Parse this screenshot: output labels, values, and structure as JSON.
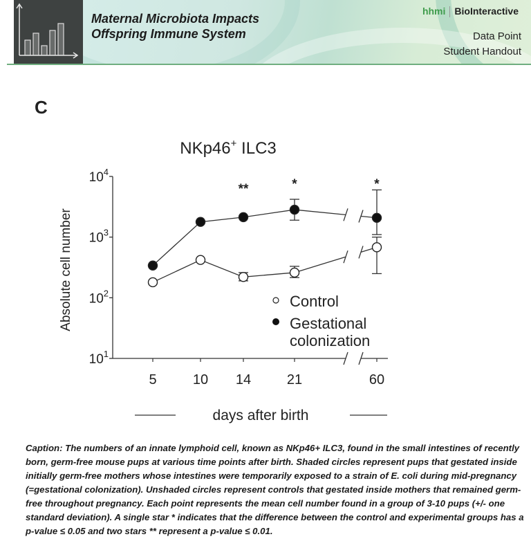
{
  "header": {
    "title_line1": "Maternal Microbiota Impacts",
    "title_line2": "Offspring Immune System",
    "brand_hhmi": "hhmi",
    "brand_name": "BioInteractive",
    "subtitle_line1": "Data Point",
    "subtitle_line2": "Student Handout",
    "accent_color": "#3f9c4c"
  },
  "panel_letter": "C",
  "chart_data": {
    "type": "line",
    "title": "NKp46",
    "title_superscript": "+",
    "title_suffix": " ILC3",
    "xlabel": "days after birth",
    "ylabel": "Absolute cell number",
    "yscale": "log",
    "ylim": [
      10,
      10000
    ],
    "y_ticks": [
      {
        "value": 10,
        "base": "10",
        "exp": "1"
      },
      {
        "value": 100,
        "base": "10",
        "exp": "2"
      },
      {
        "value": 1000,
        "base": "10",
        "exp": "3"
      },
      {
        "value": 10000,
        "base": "10",
        "exp": "4"
      }
    ],
    "x": [
      5,
      10,
      14,
      21,
      60
    ],
    "x_tick_labels": [
      "5",
      "10",
      "14",
      "21",
      "60"
    ],
    "x_axis_break": "between 21 and 60",
    "series": [
      {
        "name": "Gestational colonization",
        "marker": "filled-circle",
        "values": [
          340,
          1780,
          2130,
          2830,
          2080
        ],
        "error_low": [
          null,
          null,
          null,
          1900,
          1100
        ],
        "error_high": [
          null,
          null,
          null,
          4200,
          6000
        ]
      },
      {
        "name": "Control",
        "marker": "open-circle",
        "values": [
          180,
          420,
          220,
          260,
          680
        ],
        "error_low": [
          null,
          null,
          190,
          215,
          250
        ],
        "error_high": [
          null,
          null,
          260,
          330,
          1000
        ]
      }
    ],
    "significance": [
      {
        "x": 14,
        "label": "**"
      },
      {
        "x": 21,
        "label": "*"
      },
      {
        "x": 60,
        "label": "*"
      }
    ],
    "legend": {
      "position": "bottom-right",
      "entries": [
        {
          "label": "Control",
          "marker": "open-circle"
        },
        {
          "label_line1": "Gestational",
          "label_line2": "colonization",
          "marker": "filled-circle"
        }
      ]
    }
  },
  "caption": "Caption: The numbers of an innate lymphoid cell, known as NKp46+ ILC3, found in the small intestines of recently born, germ-free mouse pups at various time points after birth. Shaded circles represent pups that gestated inside initially germ-free mothers whose intestines were temporarily exposed to a strain of E. coli during mid-pregnancy (=gestational colonization). Unshaded circles represent controls that gestated inside mothers that remained germ-free throughout pregnancy. Each point represents the mean cell number found in a group of 3-10 pups (+/- one standard deviation). A single star * indicates that the difference between the control and experimental groups has a p-value ≤ 0.05 and two stars ** represent a p-value ≤ 0.01."
}
